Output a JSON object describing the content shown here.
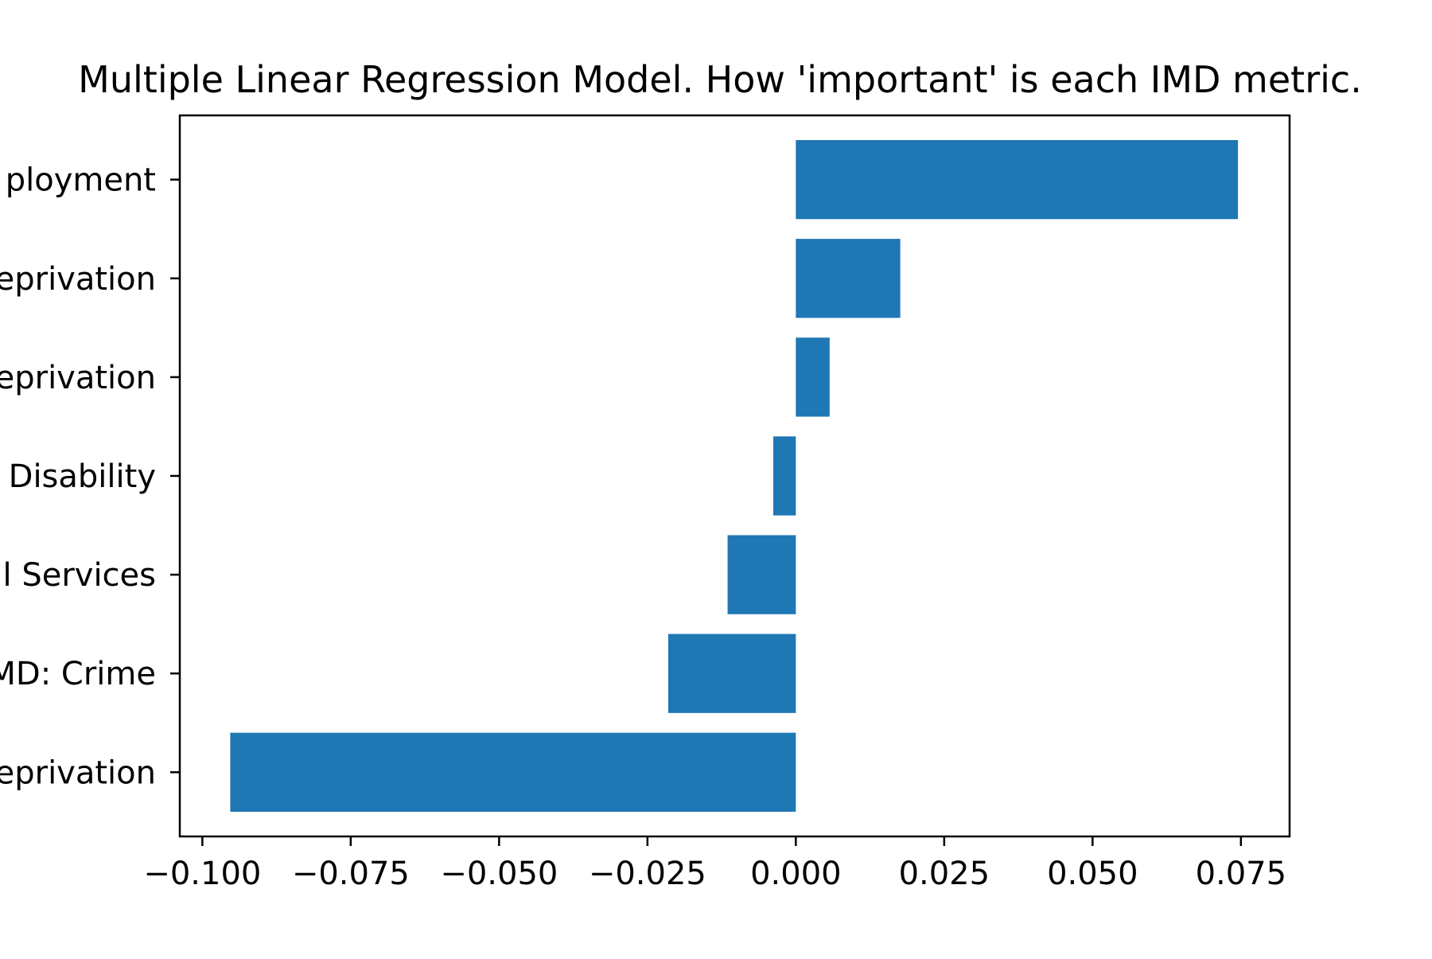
{
  "chart_data": {
    "type": "bar",
    "orientation": "horizontal",
    "title": "Multiple Linear Regression Model. How 'important' is each IMD metric.",
    "xlabel": "",
    "ylabel": "",
    "categories": [
      "ployment",
      "eprivation",
      "eprivation",
      " Disability",
      "l Services",
      "MD: Crime",
      "eprivation"
    ],
    "values": [
      0.0745,
      0.0176,
      0.0057,
      -0.0038,
      -0.0115,
      -0.0215,
      -0.0953
    ],
    "xlim": [
      -0.1038,
      0.0832
    ],
    "xticks": [
      -0.1,
      -0.075,
      -0.05,
      -0.025,
      0.0,
      0.025,
      0.05,
      0.075
    ],
    "xtick_labels": [
      "−0.100",
      "−0.075",
      "−0.050",
      "−0.025",
      "0.000",
      "0.025",
      "0.050",
      "0.075"
    ],
    "grid": false,
    "bar_color": "#1f77b4"
  }
}
